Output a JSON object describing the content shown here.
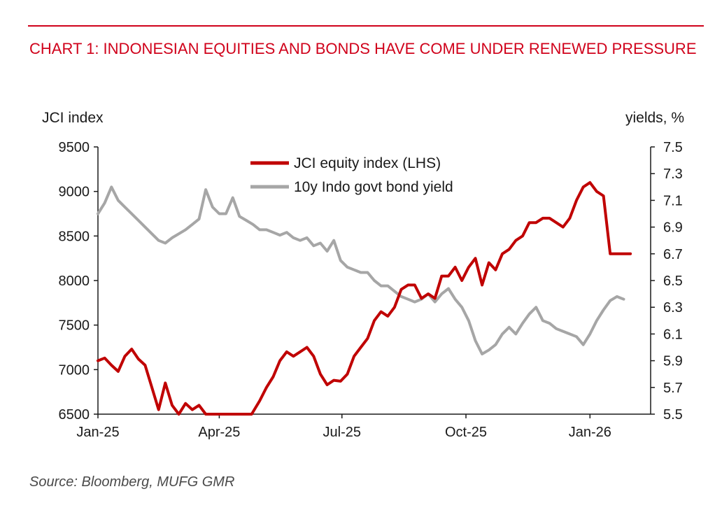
{
  "title": "CHART 1: INDONESIAN EQUITIES AND BONDS HAVE COME UNDER RENEWED PRESSURE",
  "source": "Source: Bloomberg, MUFG GMR",
  "colors": {
    "title": "#d0021b",
    "jci": "#c00000",
    "yield": "#a6a6a6"
  },
  "chart_data": {
    "type": "line",
    "left_axis": {
      "label": "JCI index",
      "min": 6500,
      "max": 9500,
      "ticks": [
        "9500",
        "9000",
        "8500",
        "8000",
        "7500",
        "7000",
        "6500"
      ]
    },
    "right_axis": {
      "label": "yields, %",
      "min": 5.5,
      "max": 7.5,
      "ticks": [
        "7.5",
        "7.3",
        "7.1",
        "6.9",
        "6.7",
        "6.5",
        "6.3",
        "6.1",
        "5.9",
        "5.7",
        "5.5"
      ]
    },
    "x_axis": {
      "start": "2025-01-01",
      "end": "2026-02-15",
      "ticks": [
        {
          "label": "Jan-25",
          "date": "2025-01-01"
        },
        {
          "label": "Apr-25",
          "date": "2025-04-01"
        },
        {
          "label": "Jul-25",
          "date": "2025-07-01"
        },
        {
          "label": "Oct-25",
          "date": "2025-10-01"
        },
        {
          "label": "Jan-26",
          "date": "2026-01-01"
        }
      ]
    },
    "legend_position": "top-center",
    "grid": false,
    "series": [
      {
        "name": "JCI equity index (LHS)",
        "axis": "left",
        "color": "#c00000",
        "x": [
          "2025-01-01",
          "2025-01-06",
          "2025-01-11",
          "2025-01-16",
          "2025-01-21",
          "2025-01-26",
          "2025-01-31",
          "2025-02-05",
          "2025-02-10",
          "2025-02-15",
          "2025-02-20",
          "2025-02-25",
          "2025-03-02",
          "2025-03-07",
          "2025-03-12",
          "2025-03-17",
          "2025-03-22",
          "2025-03-27",
          "2025-04-01",
          "2025-04-08",
          "2025-04-14",
          "2025-04-19",
          "2025-04-25",
          "2025-05-01",
          "2025-05-06",
          "2025-05-11",
          "2025-05-16",
          "2025-05-21",
          "2025-05-26",
          "2025-05-31",
          "2025-06-05",
          "2025-06-10",
          "2025-06-15",
          "2025-06-20",
          "2025-06-25",
          "2025-06-30",
          "2025-07-05",
          "2025-07-10",
          "2025-07-15",
          "2025-07-20",
          "2025-07-25",
          "2025-07-30",
          "2025-08-04",
          "2025-08-09",
          "2025-08-14",
          "2025-08-19",
          "2025-08-24",
          "2025-08-29",
          "2025-09-03",
          "2025-09-08",
          "2025-09-13",
          "2025-09-18",
          "2025-09-23",
          "2025-09-28",
          "2025-10-03",
          "2025-10-08",
          "2025-10-13",
          "2025-10-18",
          "2025-10-23",
          "2025-10-28",
          "2025-11-02",
          "2025-11-07",
          "2025-11-12",
          "2025-11-17",
          "2025-11-22",
          "2025-11-27",
          "2025-12-02",
          "2025-12-07",
          "2025-12-12",
          "2025-12-17",
          "2025-12-22",
          "2025-12-27",
          "2026-01-01",
          "2026-01-06",
          "2026-01-11",
          "2026-01-16",
          "2026-01-21",
          "2026-01-26",
          "2026-01-31"
        ],
        "values": [
          7100,
          7130,
          7050,
          6980,
          7150,
          7230,
          7120,
          7050,
          6800,
          6550,
          6850,
          6600,
          6450,
          6620,
          6550,
          6600,
          6420,
          6450,
          6480,
          6500,
          6350,
          6400,
          6480,
          6650,
          6800,
          6920,
          7100,
          7200,
          7150,
          7200,
          7250,
          7150,
          6950,
          6830,
          6880,
          6870,
          6950,
          7150,
          7250,
          7350,
          7550,
          7650,
          7600,
          7700,
          7900,
          7950,
          7950,
          7800,
          7850,
          7800,
          8050,
          8050,
          8150,
          8000,
          8150,
          8250,
          7950,
          8200,
          8120,
          8300,
          8350,
          8450,
          8500,
          8650,
          8650,
          8700,
          8700,
          8650,
          8600,
          8700,
          8900,
          9050,
          9100,
          9000,
          8950,
          8300,
          8300,
          8300,
          8300
        ]
      },
      {
        "name": "10y Indo govt bond yield",
        "axis": "right",
        "color": "#a6a6a6",
        "x": [
          "2025-01-01",
          "2025-01-06",
          "2025-01-11",
          "2025-01-16",
          "2025-01-21",
          "2025-01-26",
          "2025-01-31",
          "2025-02-05",
          "2025-02-10",
          "2025-02-15",
          "2025-02-20",
          "2025-02-25",
          "2025-03-02",
          "2025-03-07",
          "2025-03-12",
          "2025-03-17",
          "2025-03-22",
          "2025-03-27",
          "2025-04-01",
          "2025-04-06",
          "2025-04-11",
          "2025-04-16",
          "2025-04-21",
          "2025-04-26",
          "2025-05-01",
          "2025-05-06",
          "2025-05-11",
          "2025-05-16",
          "2025-05-21",
          "2025-05-26",
          "2025-05-31",
          "2025-06-05",
          "2025-06-10",
          "2025-06-15",
          "2025-06-20",
          "2025-06-25",
          "2025-06-30",
          "2025-07-05",
          "2025-07-10",
          "2025-07-15",
          "2025-07-20",
          "2025-07-25",
          "2025-07-30",
          "2025-08-04",
          "2025-08-09",
          "2025-08-14",
          "2025-08-19",
          "2025-08-24",
          "2025-08-29",
          "2025-09-03",
          "2025-09-08",
          "2025-09-13",
          "2025-09-18",
          "2025-09-23",
          "2025-09-28",
          "2025-10-03",
          "2025-10-08",
          "2025-10-13",
          "2025-10-18",
          "2025-10-23",
          "2025-10-28",
          "2025-11-02",
          "2025-11-07",
          "2025-11-12",
          "2025-11-17",
          "2025-11-22",
          "2025-11-27",
          "2025-12-02",
          "2025-12-07",
          "2025-12-12",
          "2025-12-17",
          "2025-12-22",
          "2025-12-27",
          "2026-01-01",
          "2026-01-06",
          "2026-01-11",
          "2026-01-16",
          "2026-01-21",
          "2026-01-26"
        ],
        "values": [
          7.0,
          7.08,
          7.2,
          7.1,
          7.05,
          7.0,
          6.95,
          6.9,
          6.85,
          6.8,
          6.78,
          6.82,
          6.85,
          6.88,
          6.92,
          6.96,
          7.18,
          7.05,
          7.0,
          7.0,
          7.12,
          6.98,
          6.95,
          6.92,
          6.88,
          6.88,
          6.86,
          6.84,
          6.86,
          6.82,
          6.8,
          6.82,
          6.76,
          6.78,
          6.72,
          6.8,
          6.65,
          6.6,
          6.58,
          6.56,
          6.56,
          6.5,
          6.46,
          6.46,
          6.42,
          6.38,
          6.36,
          6.34,
          6.36,
          6.4,
          6.34,
          6.4,
          6.44,
          6.36,
          6.3,
          6.2,
          6.05,
          5.95,
          5.98,
          6.02,
          6.1,
          6.15,
          6.1,
          6.18,
          6.25,
          6.3,
          6.2,
          6.18,
          6.14,
          6.12,
          6.1,
          6.08,
          6.02,
          6.1,
          6.2,
          6.28,
          6.35,
          6.38,
          6.36
        ]
      }
    ]
  }
}
